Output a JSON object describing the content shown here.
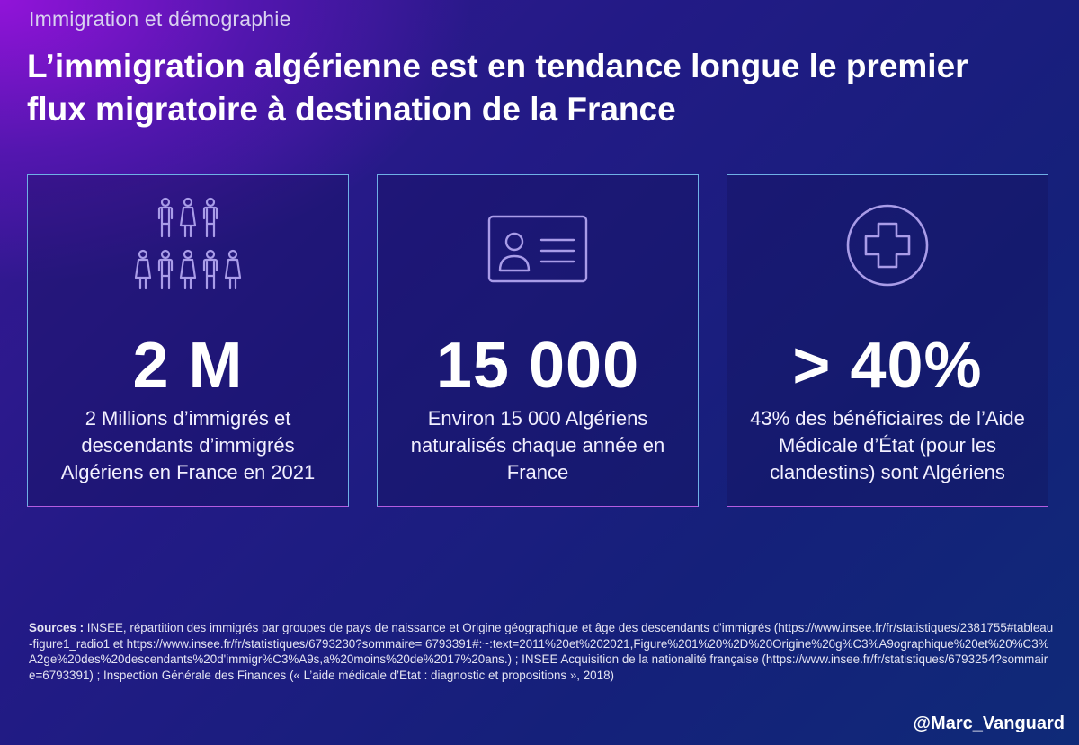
{
  "header": {
    "kicker": "Immigration et démographie",
    "title": "L’immigration algérienne est en tendance longue le premier flux migratoire à destination de la France"
  },
  "cards": [
    {
      "icon": "people-group-icon",
      "value": "2 M",
      "description": "2 Millions d’immigrés et descendants d’immigrés Algériens en France en 2021"
    },
    {
      "icon": "id-card-icon",
      "value": "15 000",
      "description": "Environ 15 000 Algériens naturalisés chaque année en France"
    },
    {
      "icon": "medical-cross-icon",
      "value": "> 40%",
      "description": "43% des bénéficiaires de l’Aide Médicale d’État (pour les clandestins) sont Algériens"
    }
  ],
  "sources": {
    "label": "Sources :",
    "text": " INSEE, répartition des immigrés par groupes de pays de naissance et Origine géographique et âge des descendants d'immigrés (https://www.insee.fr/fr/statistiques/2381755#tableau-figure1_radio1 et https://www.insee.fr/fr/statistiques/6793230?sommaire= 6793391#:~:text=2011%20et%202021,Figure%201%20%2D%20Origine%20g%C3%A9ographique%20et%20%C3%A2ge%20des%20descendants%20d'immigr%C3%A9s,a%20moins%20de%2017%20ans.) ; INSEE Acquisition de la nationalité française (https://www.insee.fr/fr/statistiques/6793254?sommaire=6793391) ; Inspection Générale des Finances (« L’aide médicale d’Etat : diagnostic et propositions », 2018)"
  },
  "footer": {
    "handle": "@Marc_Vanguard"
  },
  "colors": {
    "icon_stroke": "#a99ce8",
    "card_border_top": "#6fb0e6",
    "card_border_bottom": "#b45ce0"
  }
}
